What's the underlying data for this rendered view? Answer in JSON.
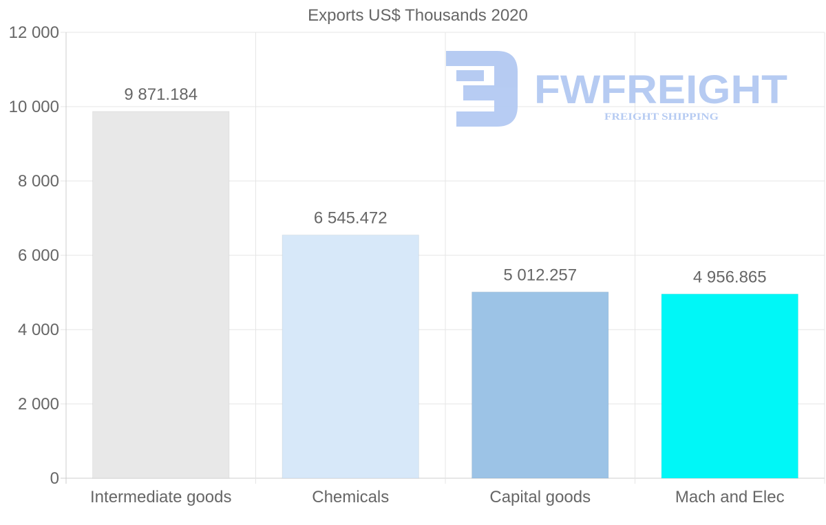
{
  "chart_data": {
    "type": "bar",
    "title": "Exports US$ Thousands 2020",
    "categories": [
      "Intermediate goods",
      "Chemicals",
      "Capital goods",
      "Mach and Elec"
    ],
    "values": [
      9871.184,
      6545.472,
      5012.257,
      4956.865
    ],
    "value_labels": [
      "9 871.184",
      "6 545.472",
      "5 012.257",
      "4 956.865"
    ],
    "bar_colors": [
      "#e8e8e8",
      "#d7e8f9",
      "#9cc3e6",
      "#00f7f7"
    ],
    "ylim": [
      0,
      12000
    ],
    "yticks": [
      0,
      2000,
      4000,
      6000,
      8000,
      10000,
      12000
    ],
    "ytick_labels": [
      "0",
      "2 000",
      "4 000",
      "6 000",
      "8 000",
      "10 000",
      "12 000"
    ],
    "xlabel": "",
    "ylabel": "",
    "grid": true,
    "legend": "none"
  },
  "watermark": {
    "brand": "FWFREIGHT",
    "tagline": "FREIGHT SHIPPING",
    "icon": "fwfreight-logo-icon",
    "color": "#b3c9f2"
  }
}
